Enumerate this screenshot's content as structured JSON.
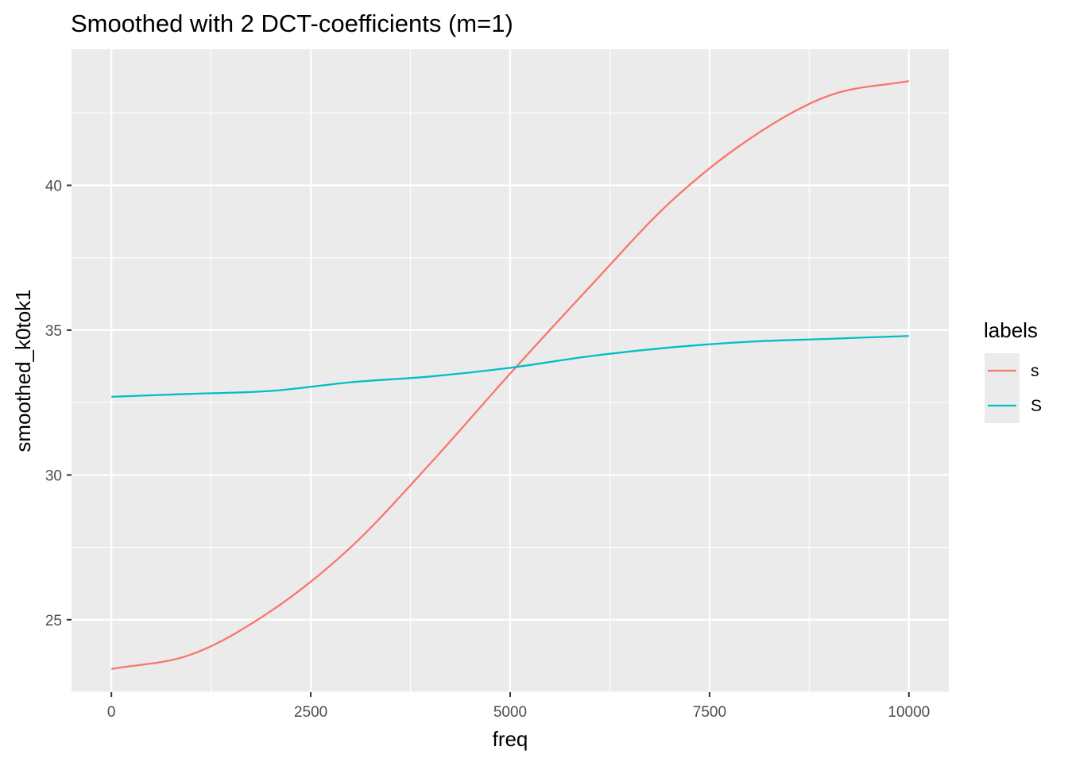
{
  "chart_data": {
    "type": "line",
    "title": "Smoothed with 2 DCT-coefficients (m=1)",
    "xlabel": "freq",
    "ylabel": "smoothed_k0tok1",
    "xlim": [
      -500,
      10500
    ],
    "ylim": [
      22.5,
      44.7
    ],
    "x_ticks": [
      0,
      2500,
      5000,
      7500,
      10000
    ],
    "x_tick_labels": [
      "0",
      "2500",
      "5000",
      "7500",
      "10000"
    ],
    "y_ticks": [
      25,
      30,
      35,
      40
    ],
    "y_tick_labels": [
      "25",
      "30",
      "35",
      "40"
    ],
    "grid": true,
    "legend": {
      "title": "labels",
      "position": "right"
    },
    "x": [
      0,
      1000,
      2000,
      3000,
      4000,
      5000,
      6000,
      7000,
      8000,
      9000,
      10000
    ],
    "series": [
      {
        "name": "s",
        "color": "#F8766D",
        "values": [
          23.3,
          23.8,
          25.3,
          27.5,
          30.4,
          33.5,
          36.5,
          39.4,
          41.6,
          43.1,
          43.6
        ]
      },
      {
        "name": "S",
        "color": "#00BFC4",
        "values": [
          32.7,
          32.8,
          32.9,
          33.2,
          33.4,
          33.7,
          34.1,
          34.4,
          34.6,
          34.7,
          34.8
        ]
      }
    ]
  }
}
